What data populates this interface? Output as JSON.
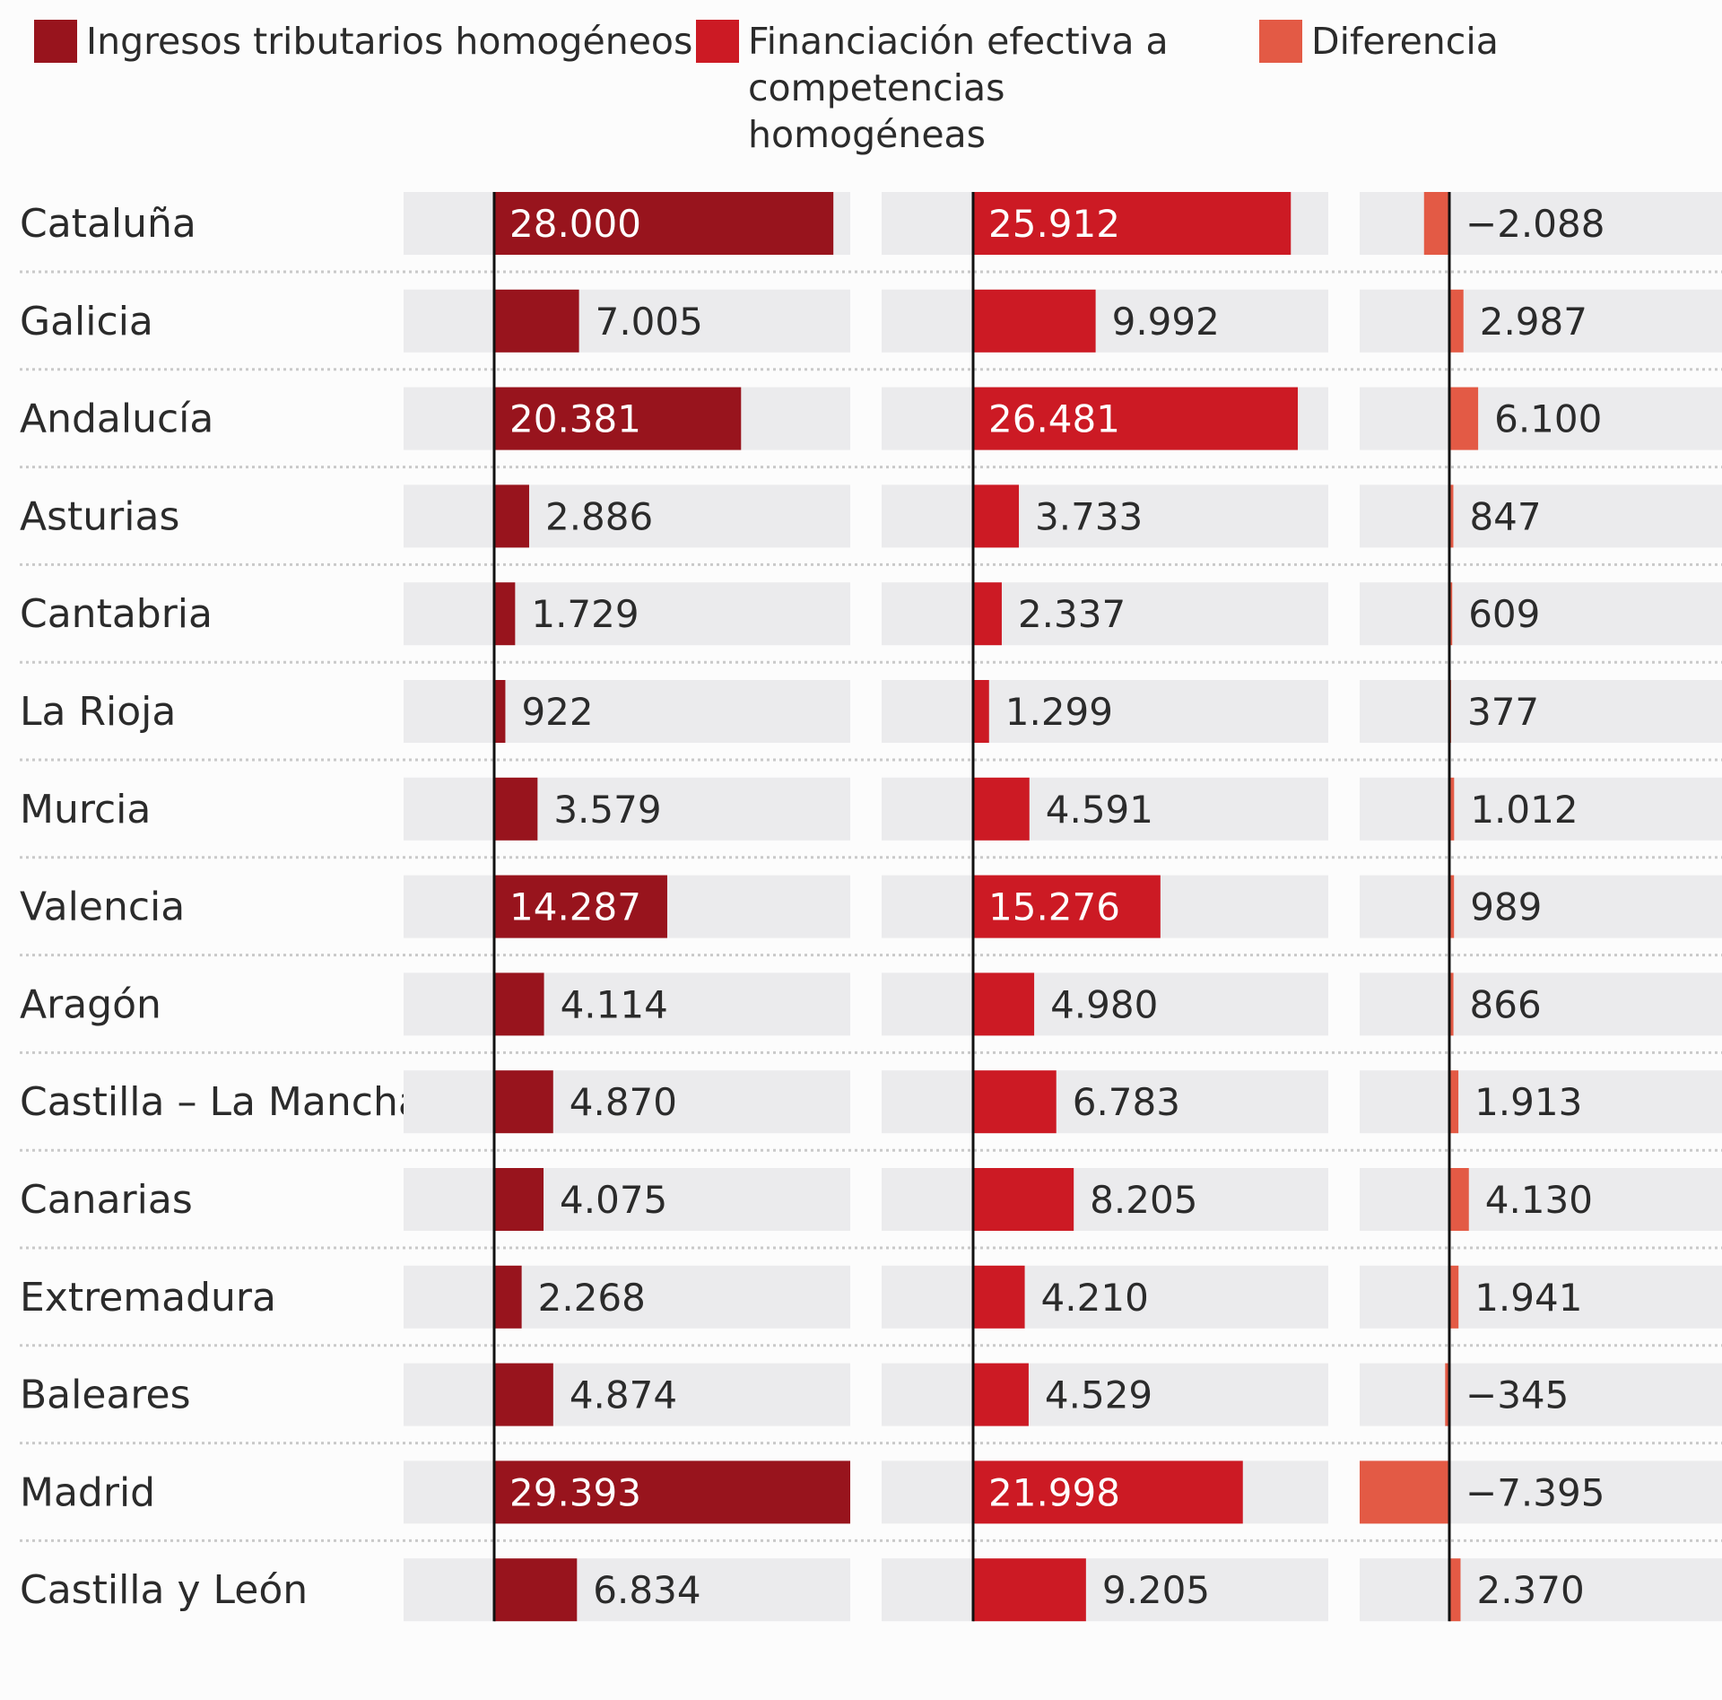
{
  "legend": [
    {
      "label": "Ingresos tributarios homogéneos",
      "color": "#98141d"
    },
    {
      "label": "Financiación efectiva a competencias homogéneas",
      "color": "#cc1a24"
    },
    {
      "label": "Diferencia",
      "color": "#e35a45"
    }
  ],
  "chart_data": {
    "type": "bar",
    "categories": [
      "Cataluña",
      "Galicia",
      "Andalucía",
      "Asturias",
      "Cantabria",
      "La Rioja",
      "Murcia",
      "Valencia",
      "Aragón",
      "Castilla – La Mancha",
      "Canarias",
      "Extremadura",
      "Baleares",
      "Madrid",
      "Castilla y León"
    ],
    "series": [
      {
        "name": "Ingresos tributarios homogéneos",
        "color": "#98141d",
        "values": [
          28000,
          7005,
          20381,
          2886,
          1729,
          922,
          3579,
          14287,
          4114,
          4870,
          4075,
          2268,
          4874,
          29393,
          6834
        ],
        "labels": [
          "28.000",
          "7.005",
          "20.381",
          "2.886",
          "1.729",
          "922",
          "3.579",
          "14.287",
          "4.114",
          "4.870",
          "4.075",
          "2.268",
          "4.874",
          "29.393",
          "6.834"
        ],
        "xlim": [
          0,
          29393
        ]
      },
      {
        "name": "Financiación efectiva a competencias homogéneas",
        "color": "#cc1a24",
        "values": [
          25912,
          9992,
          26481,
          3733,
          2337,
          1299,
          4591,
          15276,
          4980,
          6783,
          8205,
          4210,
          4529,
          21998,
          9205
        ],
        "labels": [
          "25.912",
          "9.992",
          "26.481",
          "3.733",
          "2.337",
          "1.299",
          "4.591",
          "15.276",
          "4.980",
          "6.783",
          "8.205",
          "4.210",
          "4.529",
          "21.998",
          "9.205"
        ],
        "xlim": [
          0,
          33500
        ]
      },
      {
        "name": "Diferencia",
        "color": "#e35a45",
        "values": [
          -2088,
          2987,
          6100,
          847,
          609,
          377,
          1012,
          989,
          866,
          1913,
          4130,
          1941,
          -345,
          -7395,
          2370
        ],
        "labels": [
          "−2.088",
          "2.987",
          "6.100",
          "847",
          "609",
          "377",
          "1.012",
          "989",
          "866",
          "1.913",
          "4.130",
          "1.941",
          "−345",
          "−7.395",
          "2.370"
        ],
        "xlim": [
          -7395,
          19000
        ]
      }
    ],
    "xlabel": "",
    "ylabel": ""
  }
}
